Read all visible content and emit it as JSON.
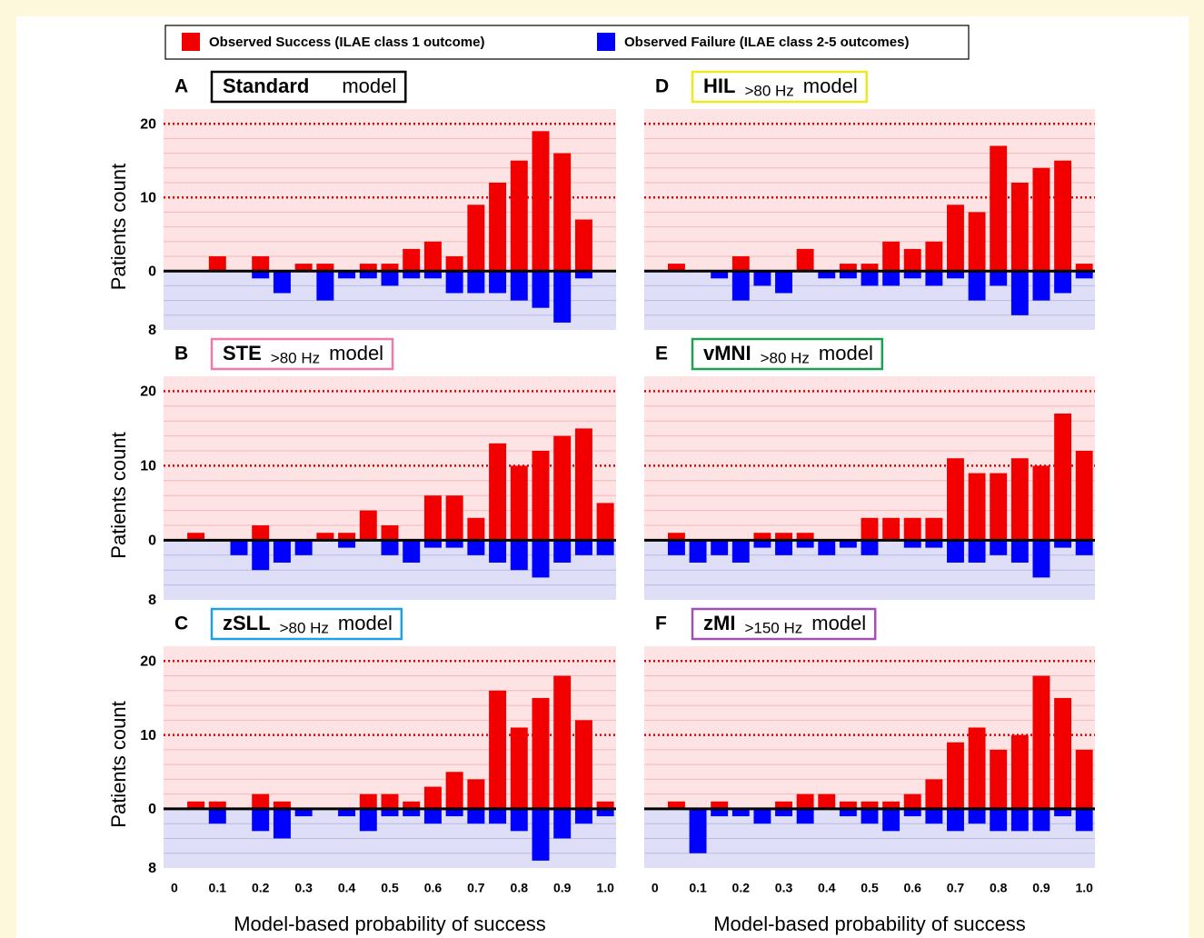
{
  "legend": [
    {
      "name": "Observed Success (ILAE class 1 outcome)",
      "color": "#f20000"
    },
    {
      "name": "Observed Failure (ILAE class 2-5 outcomes)",
      "color": "#0000ff"
    }
  ],
  "chart_data": [
    {
      "type": "bar",
      "panel": "A",
      "title": "Standard",
      "title_suffix": "model",
      "title_box_color": "#000000",
      "ylabel": "Patients count",
      "x": [
        0.05,
        0.1,
        0.15,
        0.2,
        0.25,
        0.3,
        0.35,
        0.4,
        0.45,
        0.5,
        0.55,
        0.6,
        0.65,
        0.7,
        0.75,
        0.8,
        0.85,
        0.9,
        0.95,
        1.0
      ],
      "xlim": [
        -0.025,
        1.025
      ],
      "ylim": [
        -8,
        22
      ],
      "yticks": [
        {
          "value": -8,
          "label": "8"
        },
        0,
        10,
        20
      ],
      "reference_lines": [
        10,
        20
      ],
      "minor_yticks": [
        -6,
        -4,
        -2,
        2,
        4,
        6,
        8,
        12,
        14,
        16,
        18
      ],
      "series": [
        {
          "color": "#f20000",
          "values": [
            0,
            2,
            0,
            2,
            0,
            1,
            1,
            0,
            1,
            1,
            3,
            4,
            2,
            9,
            12,
            15,
            19,
            16,
            7,
            0
          ]
        },
        {
          "color": "#0000ff",
          "values": [
            0,
            0,
            0,
            -1,
            -3,
            0,
            -4,
            -1,
            -1,
            -2,
            -1,
            -1,
            -3,
            -3,
            -3,
            -4,
            -5,
            -7,
            -1,
            0
          ]
        }
      ]
    },
    {
      "type": "bar",
      "panel": "B",
      "title": "STE",
      "subtitle": ">80 Hz",
      "title_suffix": "model",
      "title_box_color": "#f07aa8",
      "ylabel": "Patients count",
      "x": [
        0.05,
        0.1,
        0.15,
        0.2,
        0.25,
        0.3,
        0.35,
        0.4,
        0.45,
        0.5,
        0.55,
        0.6,
        0.65,
        0.7,
        0.75,
        0.8,
        0.85,
        0.9,
        0.95,
        1.0
      ],
      "xlim": [
        -0.025,
        1.025
      ],
      "ylim": [
        -8,
        22
      ],
      "yticks": [
        {
          "value": -8,
          "label": "8"
        },
        0,
        10,
        20
      ],
      "reference_lines": [
        10,
        20
      ],
      "minor_yticks": [
        -6,
        -4,
        -2,
        2,
        4,
        6,
        8,
        12,
        14,
        16,
        18
      ],
      "series": [
        {
          "color": "#f20000",
          "values": [
            1,
            0,
            0,
            2,
            0,
            0,
            1,
            1,
            4,
            2,
            0,
            6,
            6,
            3,
            13,
            10,
            12,
            14,
            15,
            5
          ]
        },
        {
          "color": "#0000ff",
          "values": [
            0,
            0,
            -2,
            -4,
            -3,
            -2,
            0,
            -1,
            0,
            -2,
            -3,
            -1,
            -1,
            -2,
            -3,
            -4,
            -5,
            -3,
            -2,
            -2
          ]
        }
      ]
    },
    {
      "type": "bar",
      "panel": "C",
      "title": "zSLL",
      "subtitle": ">80 Hz",
      "title_suffix": "model",
      "title_box_color": "#1ea0e6",
      "ylabel": "Patients count",
      "xlabel": "Model-based probability of success",
      "x": [
        0.05,
        0.1,
        0.15,
        0.2,
        0.25,
        0.3,
        0.35,
        0.4,
        0.45,
        0.5,
        0.55,
        0.6,
        0.65,
        0.7,
        0.75,
        0.8,
        0.85,
        0.9,
        0.95,
        1.0
      ],
      "xlim": [
        -0.025,
        1.025
      ],
      "ylim": [
        -8,
        22
      ],
      "yticks": [
        {
          "value": -8,
          "label": "8"
        },
        0,
        10,
        20
      ],
      "xticks": [
        0,
        0.1,
        0.2,
        0.3,
        0.4,
        0.5,
        0.6,
        0.7,
        0.8,
        0.9,
        {
          "value": 1,
          "label": "1.0"
        }
      ],
      "reference_lines": [
        10,
        20
      ],
      "minor_yticks": [
        -6,
        -4,
        -2,
        2,
        4,
        6,
        8,
        12,
        14,
        16,
        18
      ],
      "series": [
        {
          "color": "#f20000",
          "values": [
            1,
            1,
            0,
            2,
            1,
            0,
            0,
            0,
            2,
            2,
            1,
            3,
            5,
            4,
            16,
            11,
            15,
            18,
            12,
            1
          ]
        },
        {
          "color": "#0000ff",
          "values": [
            0,
            -2,
            0,
            -3,
            -4,
            -1,
            0,
            -1,
            -3,
            -1,
            -1,
            -2,
            -1,
            -2,
            -2,
            -3,
            -7,
            -4,
            -2,
            -1
          ]
        }
      ]
    },
    {
      "type": "bar",
      "panel": "D",
      "title": "HIL",
      "subtitle": ">80 Hz",
      "title_suffix": "model",
      "title_box_color": "#f0e81e",
      "x": [
        0.05,
        0.1,
        0.15,
        0.2,
        0.25,
        0.3,
        0.35,
        0.4,
        0.45,
        0.5,
        0.55,
        0.6,
        0.65,
        0.7,
        0.75,
        0.8,
        0.85,
        0.9,
        0.95,
        1.0
      ],
      "xlim": [
        -0.025,
        1.025
      ],
      "ylim": [
        -8,
        22
      ],
      "reference_lines": [
        10,
        20
      ],
      "minor_yticks": [
        -6,
        -4,
        -2,
        2,
        4,
        6,
        8,
        12,
        14,
        16,
        18
      ],
      "series": [
        {
          "color": "#f20000",
          "values": [
            1,
            0,
            0,
            2,
            0,
            0,
            3,
            0,
            1,
            1,
            4,
            3,
            4,
            9,
            8,
            17,
            12,
            14,
            15,
            1
          ]
        },
        {
          "color": "#0000ff",
          "values": [
            0,
            0,
            -1,
            -4,
            -2,
            -3,
            0,
            -1,
            -1,
            -2,
            -2,
            -1,
            -2,
            -1,
            -4,
            -2,
            -6,
            -4,
            -3,
            -1
          ]
        }
      ]
    },
    {
      "type": "bar",
      "panel": "E",
      "title": "vMNI",
      "subtitle": ">80 Hz",
      "title_suffix": "model",
      "title_box_color": "#1ea050",
      "x": [
        0.05,
        0.1,
        0.15,
        0.2,
        0.25,
        0.3,
        0.35,
        0.4,
        0.45,
        0.5,
        0.55,
        0.6,
        0.65,
        0.7,
        0.75,
        0.8,
        0.85,
        0.9,
        0.95,
        1.0
      ],
      "xlim": [
        -0.025,
        1.025
      ],
      "ylim": [
        -8,
        22
      ],
      "reference_lines": [
        10,
        20
      ],
      "minor_yticks": [
        -6,
        -4,
        -2,
        2,
        4,
        6,
        8,
        12,
        14,
        16,
        18
      ],
      "series": [
        {
          "color": "#f20000",
          "values": [
            1,
            0,
            0,
            0,
            1,
            1,
            1,
            0,
            0,
            3,
            3,
            3,
            3,
            11,
            9,
            9,
            11,
            10,
            17,
            12
          ]
        },
        {
          "color": "#0000ff",
          "values": [
            -2,
            -3,
            -2,
            -3,
            -1,
            -2,
            -1,
            -2,
            -1,
            -2,
            0,
            -1,
            -1,
            -3,
            -3,
            -2,
            -3,
            -5,
            -1,
            -2
          ]
        }
      ]
    },
    {
      "type": "bar",
      "panel": "F",
      "title": "zMI",
      "subtitle": ">150 Hz",
      "title_suffix": "model",
      "title_box_color": "#a050b4",
      "xlabel": "Model-based probability of success",
      "x": [
        0.05,
        0.1,
        0.15,
        0.2,
        0.25,
        0.3,
        0.35,
        0.4,
        0.45,
        0.5,
        0.55,
        0.6,
        0.65,
        0.7,
        0.75,
        0.8,
        0.85,
        0.9,
        0.95,
        1.0
      ],
      "xlim": [
        -0.025,
        1.025
      ],
      "ylim": [
        -8,
        22
      ],
      "xticks": [
        0,
        0.1,
        0.2,
        0.3,
        0.4,
        0.5,
        0.6,
        0.7,
        0.8,
        0.9,
        {
          "value": 1,
          "label": "1.0"
        }
      ],
      "reference_lines": [
        10,
        20
      ],
      "minor_yticks": [
        -6,
        -4,
        -2,
        2,
        4,
        6,
        8,
        12,
        14,
        16,
        18
      ],
      "series": [
        {
          "color": "#f20000",
          "values": [
            1,
            0,
            1,
            0,
            0,
            1,
            2,
            2,
            1,
            1,
            1,
            2,
            4,
            9,
            11,
            8,
            10,
            18,
            15,
            8
          ]
        },
        {
          "color": "#0000ff",
          "values": [
            0,
            -6,
            -1,
            -1,
            -2,
            -1,
            -2,
            0,
            -1,
            -2,
            -3,
            -1,
            -2,
            -3,
            -2,
            -3,
            -3,
            -3,
            -1,
            -3
          ]
        }
      ]
    }
  ]
}
